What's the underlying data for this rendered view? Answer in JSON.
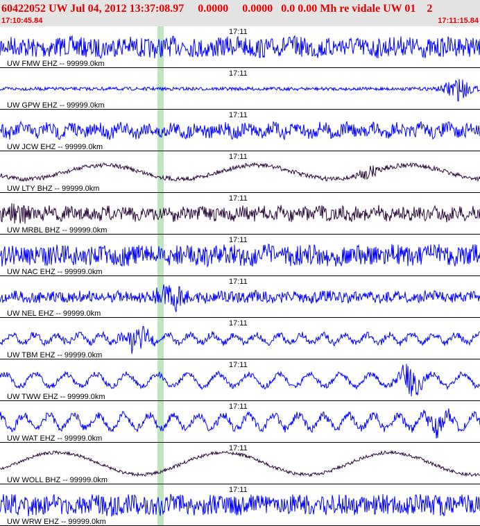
{
  "header": {
    "title": "60422052 UW Jul 04, 2012 13:37:08.97     0.0000     0.0000   0.0 0.00 Mh re vidale UW 01    2",
    "start_time": "17:10:45.84",
    "end_time": "17:11:15.84"
  },
  "traces": [
    {
      "label": "UW FMW EHZ -- 99999.0km",
      "time_mark": "17:11",
      "color": "#0000ff"
    },
    {
      "label": "UW GPW EHZ -- 99999.0km",
      "time_mark": "17:11",
      "color": "#0000ff"
    },
    {
      "label": "UW JCW EHZ -- 99999.0km",
      "time_mark": "17:11",
      "color": "#0000ff"
    },
    {
      "label": "UW LTY BHZ -- 99999.0km",
      "time_mark": "17:11",
      "color": "#2a0a3a"
    },
    {
      "label": "UW MRBL BHZ -- 99999.0km",
      "time_mark": "17:11",
      "color": "#2a0a3a"
    },
    {
      "label": "UW NAC EHZ -- 99999.0km",
      "time_mark": "17:11",
      "color": "#0000ff"
    },
    {
      "label": "UW NEL EHZ -- 99999.0km",
      "time_mark": "17:11",
      "color": "#0000ff"
    },
    {
      "label": "UW TBM EHZ -- 99999.0km",
      "time_mark": "17:11",
      "color": "#0000ff"
    },
    {
      "label": "UW TWW EHZ -- 99999.0km",
      "time_mark": "17:11",
      "color": "#0000ff"
    },
    {
      "label": "UW WAT EHZ -- 99999.0km",
      "time_mark": "17:11",
      "color": "#0000ff"
    },
    {
      "label": "UW WOLL BHZ -- 99999.0km",
      "time_mark": "17:11",
      "color": "#2a0a3a"
    },
    {
      "label": "UW WRW EHZ -- 99999.0km",
      "time_mark": "17:11",
      "color": "#0000ff"
    }
  ]
}
